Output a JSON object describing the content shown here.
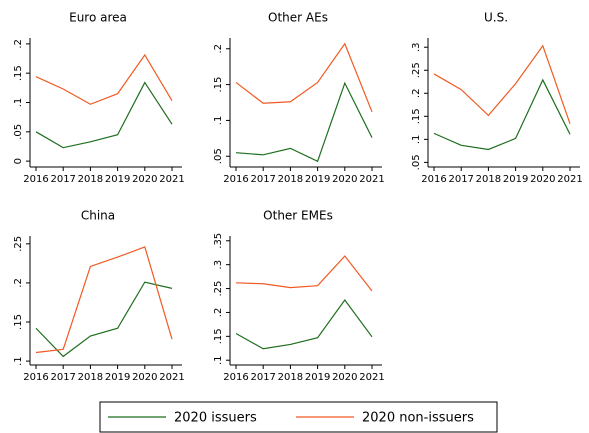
{
  "chart_data": [
    {
      "type": "line",
      "title": "Euro area",
      "categories": [
        "2016",
        "2017",
        "2018",
        "2019",
        "2020",
        "2021"
      ],
      "series": [
        {
          "name": "2020 issuers",
          "color": "#1e6e1e",
          "values": [
            0.05,
            0.023,
            0.033,
            0.045,
            0.134,
            0.063
          ]
        },
        {
          "name": "2020 non-issuers",
          "color": "#f05a23",
          "values": [
            0.144,
            0.123,
            0.097,
            0.115,
            0.181,
            0.103
          ]
        }
      ],
      "ylim": [
        -0.01,
        0.21
      ],
      "yticks": [
        0,
        {
          "value": 0.05,
          "label": ".05"
        },
        {
          "value": 0.1,
          "label": ".1"
        },
        {
          "value": 0.15,
          "label": ".15"
        },
        {
          "value": 0.2,
          "label": ".2"
        }
      ]
    },
    {
      "type": "line",
      "title": "Other AEs",
      "categories": [
        "2016",
        "2017",
        "2018",
        "2019",
        "2020",
        "2021"
      ],
      "series": [
        {
          "name": "2020 issuers",
          "color": "#1e6e1e",
          "values": [
            0.055,
            0.052,
            0.061,
            0.043,
            0.152,
            0.076
          ]
        },
        {
          "name": "2020 non-issuers",
          "color": "#f05a23",
          "values": [
            0.153,
            0.124,
            0.126,
            0.153,
            0.207,
            0.112
          ]
        }
      ],
      "ylim": [
        0.035,
        0.215
      ],
      "yticks": [
        {
          "value": 0.05,
          "label": ".05"
        },
        {
          "value": 0.1,
          "label": ".1"
        },
        {
          "value": 0.15,
          "label": ".15"
        },
        {
          "value": 0.2,
          "label": ".2"
        }
      ]
    },
    {
      "type": "line",
      "title": "U.S.",
      "categories": [
        "2016",
        "2017",
        "2018",
        "2019",
        "2020",
        "2021"
      ],
      "series": [
        {
          "name": "2020 issuers",
          "color": "#1e6e1e",
          "values": [
            0.113,
            0.087,
            0.078,
            0.102,
            0.229,
            0.111
          ]
        },
        {
          "name": "2020 non-issuers",
          "color": "#f05a23",
          "values": [
            0.242,
            0.208,
            0.152,
            0.221,
            0.303,
            0.134
          ]
        }
      ],
      "ylim": [
        0.04,
        0.32
      ],
      "yticks": [
        {
          "value": 0.05,
          "label": ".05"
        },
        {
          "value": 0.1,
          "label": ".1"
        },
        {
          "value": 0.15,
          "label": ".15"
        },
        {
          "value": 0.2,
          "label": ".2"
        },
        {
          "value": 0.25,
          "label": ".25"
        },
        {
          "value": 0.3,
          "label": ".3"
        }
      ]
    },
    {
      "type": "line",
      "title": "China",
      "categories": [
        "2016",
        "2017",
        "2018",
        "2019",
        "2020",
        "2021"
      ],
      "series": [
        {
          "name": "2020 issuers",
          "color": "#1e6e1e",
          "values": [
            0.142,
            0.106,
            0.132,
            0.142,
            0.201,
            0.193
          ]
        },
        {
          "name": "2020 non-issuers",
          "color": "#f05a23",
          "values": [
            0.111,
            0.115,
            0.221,
            0.233,
            0.246,
            0.128
          ]
        }
      ],
      "ylim": [
        0.095,
        0.26
      ],
      "yticks": [
        {
          "value": 0.1,
          "label": ".1"
        },
        {
          "value": 0.15,
          "label": ".15"
        },
        {
          "value": 0.2,
          "label": ".2"
        },
        {
          "value": 0.25,
          "label": ".25"
        }
      ]
    },
    {
      "type": "line",
      "title": "Other EMEs",
      "categories": [
        "2016",
        "2017",
        "2018",
        "2019",
        "2020",
        "2021"
      ],
      "series": [
        {
          "name": "2020 issuers",
          "color": "#1e6e1e",
          "values": [
            0.156,
            0.124,
            0.133,
            0.147,
            0.226,
            0.149
          ]
        },
        {
          "name": "2020 non-issuers",
          "color": "#f05a23",
          "values": [
            0.262,
            0.26,
            0.252,
            0.256,
            0.318,
            0.245
          ]
        }
      ],
      "ylim": [
        0.09,
        0.36
      ],
      "yticks": [
        {
          "value": 0.1,
          "label": ".1"
        },
        {
          "value": 0.15,
          "label": ".15"
        },
        {
          "value": 0.2,
          "label": ".2"
        },
        {
          "value": 0.25,
          "label": ".25"
        },
        {
          "value": 0.3,
          "label": ".3"
        },
        {
          "value": 0.35,
          "label": ".35"
        }
      ]
    }
  ]
}
